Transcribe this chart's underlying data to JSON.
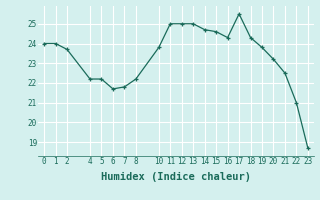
{
  "x": [
    0,
    1,
    2,
    4,
    5,
    6,
    7,
    8,
    10,
    11,
    12,
    13,
    14,
    15,
    16,
    17,
    18,
    19,
    20,
    21,
    22,
    23
  ],
  "y": [
    24.0,
    24.0,
    23.7,
    22.2,
    22.2,
    21.7,
    21.8,
    22.2,
    23.8,
    25.0,
    25.0,
    25.0,
    24.7,
    24.6,
    24.3,
    25.5,
    24.3,
    23.8,
    23.2,
    22.5,
    21.0,
    18.7
  ],
  "xticks": [
    0,
    1,
    2,
    4,
    5,
    6,
    7,
    8,
    10,
    11,
    12,
    13,
    14,
    15,
    16,
    17,
    18,
    19,
    20,
    21,
    22,
    23
  ],
  "yticks": [
    19,
    20,
    21,
    22,
    23,
    24,
    25
  ],
  "ylim": [
    18.3,
    25.9
  ],
  "xlim": [
    -0.5,
    23.5
  ],
  "xlabel": "Humidex (Indice chaleur)",
  "line_color": "#1a6b5a",
  "marker": "+",
  "bg_color": "#d4f0ee",
  "grid_color": "#c8e8e4",
  "tick_label_fontsize": 5.5,
  "xlabel_fontsize": 7.5
}
